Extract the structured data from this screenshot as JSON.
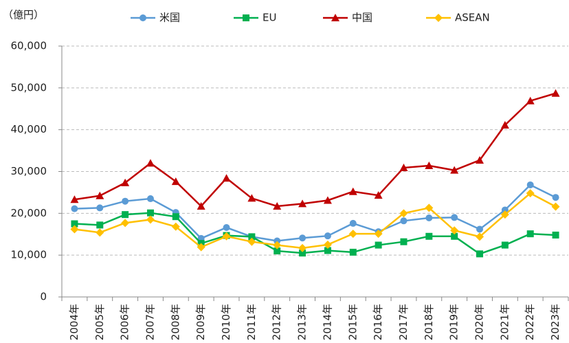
{
  "chart_data": {
    "type": "line",
    "y_label": "（億円）",
    "categories": [
      "2004年",
      "2005年",
      "2006年",
      "2007年",
      "2008年",
      "2009年",
      "2010年",
      "2011年",
      "2012年",
      "2013年",
      "2014年",
      "2015年",
      "2016年",
      "2017年",
      "2018年",
      "2019年",
      "2020年",
      "2021年",
      "2022年",
      "2023年"
    ],
    "series": [
      {
        "name": "米国",
        "color": "#5b9bd5",
        "marker": "circle",
        "values": [
          21100,
          21300,
          22900,
          23500,
          20200,
          14000,
          16600,
          14400,
          13400,
          14100,
          14600,
          17600,
          15600,
          18200,
          18900,
          19000,
          16200,
          20800,
          26800,
          23800
        ]
      },
      {
        "name": "EU",
        "color": "#00b050",
        "marker": "square",
        "values": [
          17500,
          17200,
          19700,
          20100,
          19200,
          12800,
          14700,
          14400,
          11000,
          10500,
          11100,
          10700,
          12400,
          13200,
          14500,
          14500,
          10300,
          12400,
          15100,
          14800
        ]
      },
      {
        "name": "中国",
        "color": "#c00000",
        "marker": "triangle",
        "values": [
          23300,
          24200,
          27300,
          32000,
          27600,
          21700,
          28400,
          23600,
          21700,
          22300,
          23100,
          25200,
          24300,
          30900,
          31400,
          30300,
          32700,
          41100,
          46900,
          48700
        ]
      },
      {
        "name": "ASEAN",
        "color": "#ffc000",
        "marker": "diamond",
        "values": [
          16200,
          15400,
          17700,
          18500,
          16800,
          11900,
          14500,
          13200,
          12400,
          11700,
          12500,
          15100,
          15100,
          20000,
          21300,
          15900,
          14400,
          19700,
          24800,
          21600
        ]
      }
    ],
    "ylim": [
      0,
      60000
    ],
    "yticks": [
      0,
      {
        "value": 10000,
        "label": "10,000"
      },
      {
        "value": 20000,
        "label": "20,000"
      },
      {
        "value": 30000,
        "label": "30,000"
      },
      {
        "value": 40000,
        "label": "40,000"
      },
      {
        "value": 50000,
        "label": "50,000"
      },
      {
        "value": 60000,
        "label": "60,000"
      }
    ],
    "grid": true,
    "legend": "top"
  }
}
